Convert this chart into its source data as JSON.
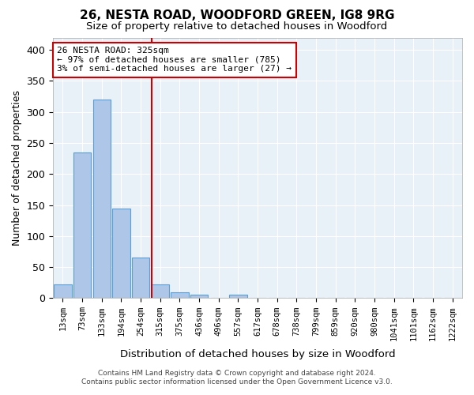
{
  "title": "26, NESTA ROAD, WOODFORD GREEN, IG8 9RG",
  "subtitle": "Size of property relative to detached houses in Woodford",
  "xlabel": "Distribution of detached houses by size in Woodford",
  "ylabel": "Number of detached properties",
  "bar_values": [
    22,
    235,
    320,
    145,
    65,
    22,
    9,
    6,
    0,
    6,
    0,
    0,
    0,
    0,
    0,
    0,
    0,
    0,
    0,
    0,
    0
  ],
  "bar_labels": [
    "13sqm",
    "73sqm",
    "133sqm",
    "194sqm",
    "254sqm",
    "315sqm",
    "375sqm",
    "436sqm",
    "496sqm",
    "557sqm",
    "617sqm",
    "678sqm",
    "738sqm",
    "799sqm",
    "859sqm",
    "920sqm",
    "980sqm",
    "1041sqm",
    "1101sqm",
    "1162sqm",
    "1222sqm"
  ],
  "bar_color": "#aec6e8",
  "bar_edge_color": "#5a9fd4",
  "vline_color": "#cc0000",
  "annotation_text": "26 NESTA ROAD: 325sqm\n← 97% of detached houses are smaller (785)\n3% of semi-detached houses are larger (27) →",
  "annotation_box_color": "#ffffff",
  "annotation_box_edge": "#cc0000",
  "ylim": [
    0,
    420
  ],
  "yticks": [
    0,
    50,
    100,
    150,
    200,
    250,
    300,
    350,
    400
  ],
  "background_color": "#e8f0f8",
  "grid_color": "#ffffff",
  "footer_line1": "Contains HM Land Registry data © Crown copyright and database right 2024.",
  "footer_line2": "Contains public sector information licensed under the Open Government Licence v3.0."
}
